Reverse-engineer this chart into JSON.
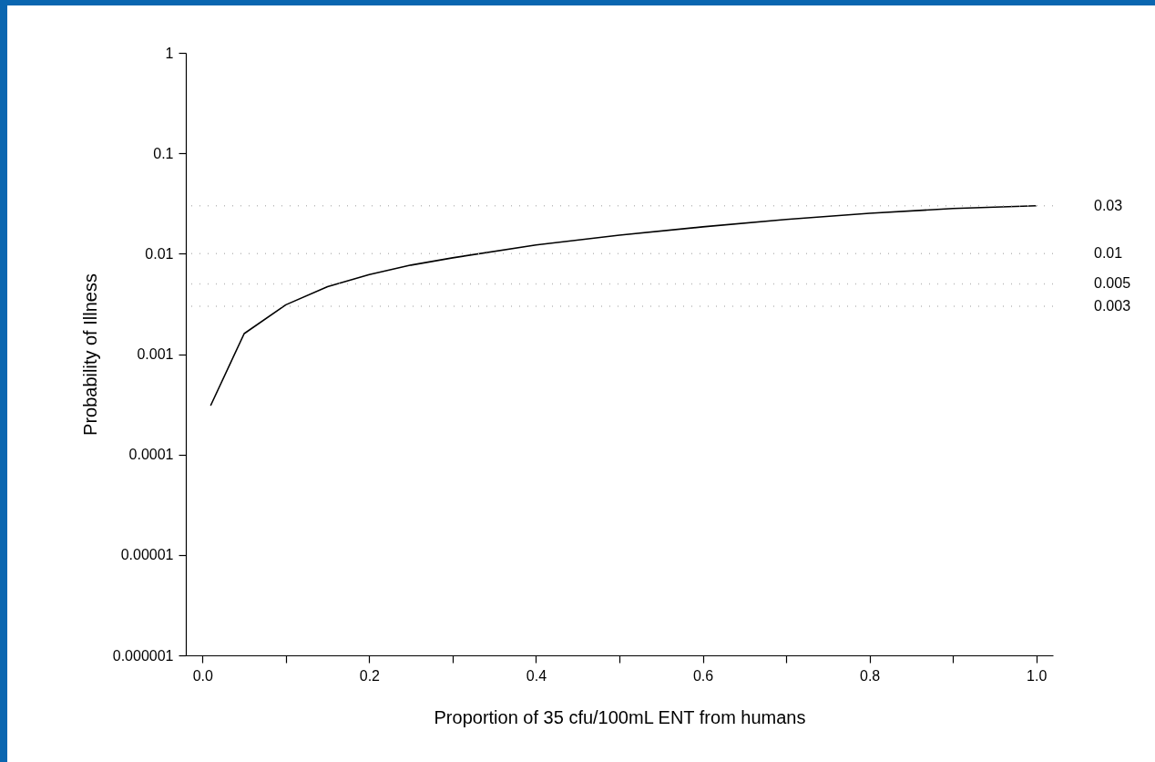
{
  "chart_data": {
    "type": "line",
    "xlabel": "Proportion of 35 cfu/100mL ENT from humans",
    "ylabel": "Probability of Illness",
    "x": [
      0.01,
      0.05,
      0.1,
      0.15,
      0.2,
      0.25,
      0.3,
      0.4,
      0.5,
      0.6,
      0.7,
      0.8,
      0.9,
      1.0
    ],
    "series": [
      {
        "color": "#000000",
        "values": [
          0.00031,
          0.0016,
          0.0031,
          0.0047,
          0.0062,
          0.0077,
          0.0091,
          0.0122,
          0.0153,
          0.0185,
          0.0219,
          0.0253,
          0.0282,
          0.03
        ]
      }
    ],
    "log": "y",
    "xlim": [
      -0.02,
      1.02
    ],
    "ylim": [
      1e-06,
      1
    ],
    "xticks": [
      {
        "value": 0.0,
        "label": "0.0"
      },
      {
        "value": 0.1,
        "label": null
      },
      {
        "value": 0.2,
        "label": "0.2"
      },
      {
        "value": 0.3,
        "label": null
      },
      {
        "value": 0.4,
        "label": "0.4"
      },
      {
        "value": 0.5,
        "label": null
      },
      {
        "value": 0.6,
        "label": "0.6"
      },
      {
        "value": 0.7,
        "label": null
      },
      {
        "value": 0.8,
        "label": "0.8"
      },
      {
        "value": 0.9,
        "label": null
      },
      {
        "value": 1.0,
        "label": "1.0"
      }
    ],
    "yticks": [
      {
        "value": 1e-06,
        "label": "0.000001"
      },
      {
        "value": 1e-05,
        "label": "0.00001"
      },
      0.0001,
      0.001,
      0.01,
      0.1,
      1
    ],
    "ref_lines": [
      {
        "axis": "y",
        "value": 0.03,
        "label": "0.03",
        "color": "#bbbbbb",
        "line_style": "dotted"
      },
      {
        "axis": "y",
        "value": 0.01,
        "label": "0.01",
        "color": "#bbbbbb",
        "line_style": "dotted"
      },
      {
        "axis": "y",
        "value": 0.005,
        "label": "0.005",
        "color": "#bbbbbb",
        "line_style": "dotted"
      },
      {
        "axis": "y",
        "value": 0.003,
        "label": "0.003",
        "color": "#bbbbbb",
        "line_style": "dotted"
      }
    ],
    "grid": false,
    "line_style": "solid",
    "marker": "none"
  }
}
